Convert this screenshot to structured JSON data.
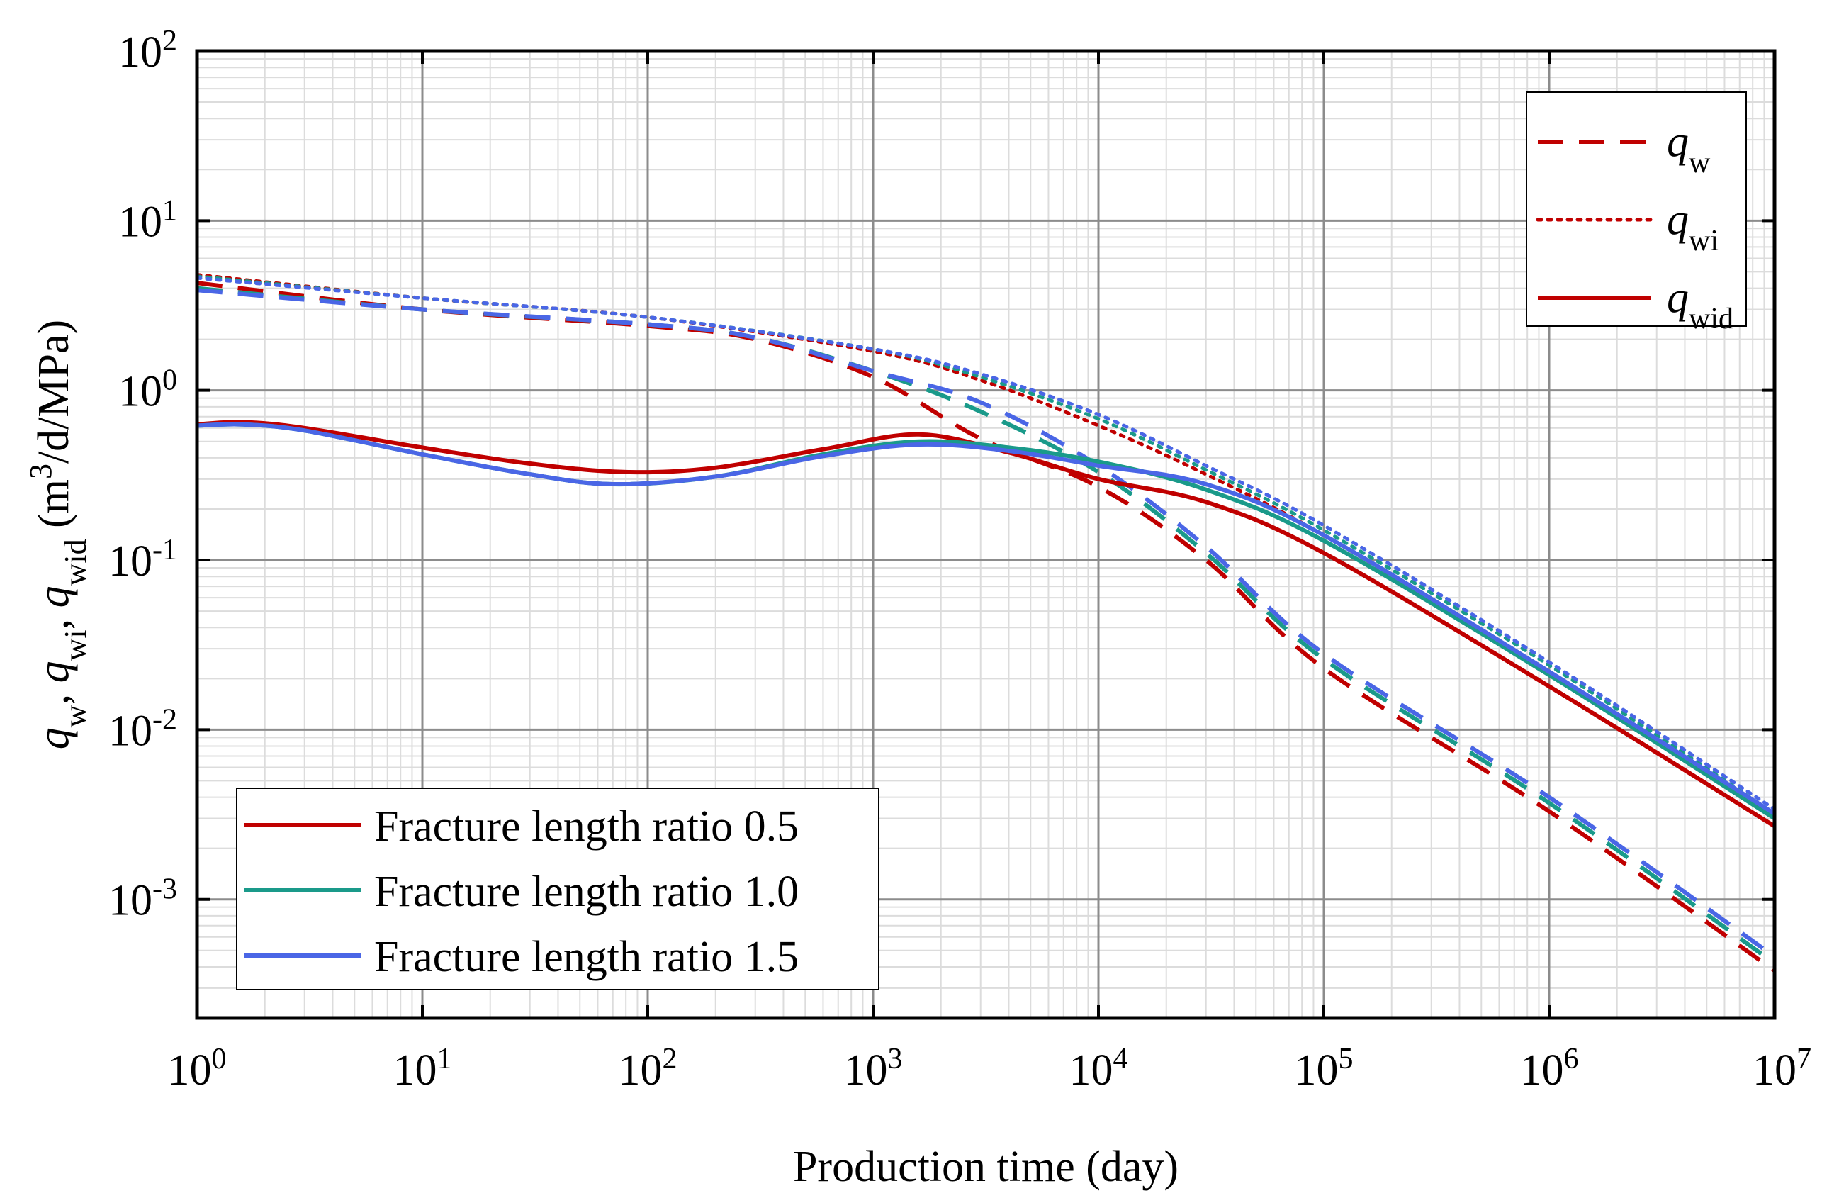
{
  "chart_data": {
    "type": "line",
    "title": "",
    "xlabel": "Production time (day)",
    "ylabel_parts": [
      {
        "text": "q",
        "style": "italic"
      },
      {
        "text": "w",
        "style": "sub"
      },
      {
        "text": ", ",
        "style": "normal"
      },
      {
        "text": "q",
        "style": "italic"
      },
      {
        "text": "wi",
        "style": "sub"
      },
      {
        "text": ", ",
        "style": "normal"
      },
      {
        "text": "q",
        "style": "italic"
      },
      {
        "text": "wid",
        "style": "sub"
      },
      {
        "text": " (m",
        "style": "normal"
      },
      {
        "text": "3",
        "style": "sup"
      },
      {
        "text": "/d/MPa)",
        "style": "normal"
      }
    ],
    "x_scale": "log",
    "y_scale": "log",
    "xlim": [
      1,
      10000000
    ],
    "ylim": [
      0.0002,
      100
    ],
    "x_ticks": [
      {
        "base": "10",
        "exp": "0",
        "value": 1
      },
      {
        "base": "10",
        "exp": "1",
        "value": 10
      },
      {
        "base": "10",
        "exp": "2",
        "value": 100
      },
      {
        "base": "10",
        "exp": "3",
        "value": 1000
      },
      {
        "base": "10",
        "exp": "4",
        "value": 10000
      },
      {
        "base": "10",
        "exp": "5",
        "value": 100000
      },
      {
        "base": "10",
        "exp": "6",
        "value": 1000000
      },
      {
        "base": "10",
        "exp": "7",
        "value": 10000000
      }
    ],
    "y_ticks": [
      {
        "base": "10",
        "exp": "-3",
        "value": 0.001
      },
      {
        "base": "10",
        "exp": "-2",
        "value": 0.01
      },
      {
        "base": "10",
        "exp": "-1",
        "value": 0.1
      },
      {
        "base": "10",
        "exp": "0",
        "value": 1
      },
      {
        "base": "10",
        "exp": "1",
        "value": 10
      },
      {
        "base": "10",
        "exp": "2",
        "value": 100
      }
    ],
    "grid": true,
    "colors": {
      "ratio_0_5": "#c00000",
      "ratio_1_0": "#1a9a8a",
      "ratio_1_5": "#4a66e6"
    },
    "legend_groups": {
      "placement": "bottom-left",
      "entries": [
        {
          "label": "Fracture length ratio 0.5",
          "color": "#c00000"
        },
        {
          "label": "Fracture length ratio 1.0",
          "color": "#1a9a8a"
        },
        {
          "label": "Fracture length ratio 1.5",
          "color": "#4a66e6"
        }
      ]
    },
    "legend_types": {
      "placement": "top-right",
      "entries": [
        {
          "symbol": "q",
          "sub": "w",
          "dash": "dashed",
          "color": "#c00000"
        },
        {
          "symbol": "q",
          "sub": "wi",
          "dash": "dotted",
          "color": "#c00000"
        },
        {
          "symbol": "q",
          "sub": "wid",
          "dash": "solid",
          "color": "#c00000"
        }
      ]
    },
    "series": [
      {
        "name": "q_w, ratio 0.5",
        "dash": "dashed",
        "color": "#c00000",
        "x": [
          1,
          10,
          100,
          300,
          1000,
          3000,
          10000,
          30000,
          100000,
          1000000,
          10000000
        ],
        "y": [
          4.3,
          3.0,
          2.4,
          2.0,
          1.2,
          0.52,
          0.27,
          0.1,
          0.023,
          0.0033,
          0.00038
        ]
      },
      {
        "name": "q_w, ratio 1.0",
        "dash": "dashed",
        "color": "#1a9a8a",
        "x": [
          1,
          10,
          100,
          300,
          1000,
          3000,
          10000,
          30000,
          100000,
          1000000,
          10000000
        ],
        "y": [
          4.0,
          3.0,
          2.45,
          2.05,
          1.3,
          0.75,
          0.33,
          0.11,
          0.026,
          0.0037,
          0.00042
        ]
      },
      {
        "name": "q_w, ratio 1.5",
        "dash": "dashed",
        "color": "#4a66e6",
        "x": [
          1,
          10,
          100,
          300,
          1000,
          3000,
          10000,
          30000,
          100000,
          1000000,
          10000000
        ],
        "y": [
          3.9,
          3.0,
          2.45,
          2.05,
          1.3,
          0.85,
          0.36,
          0.12,
          0.028,
          0.004,
          0.00046
        ]
      },
      {
        "name": "q_wi, ratio 0.5",
        "dash": "dotted",
        "color": "#c00000",
        "x": [
          1,
          10,
          100,
          1000,
          3000,
          10000,
          30000,
          100000,
          1000000,
          10000000
        ],
        "y": [
          4.8,
          3.5,
          2.7,
          1.7,
          1.15,
          0.62,
          0.32,
          0.14,
          0.022,
          0.003
        ]
      },
      {
        "name": "q_wi, ratio 1.0",
        "dash": "dotted",
        "color": "#1a9a8a",
        "x": [
          1,
          10,
          100,
          1000,
          3000,
          10000,
          30000,
          100000,
          1000000,
          10000000
        ],
        "y": [
          4.7,
          3.5,
          2.7,
          1.75,
          1.2,
          0.68,
          0.34,
          0.15,
          0.024,
          0.0032
        ]
      },
      {
        "name": "q_wi, ratio 1.5",
        "dash": "dotted",
        "color": "#4a66e6",
        "x": [
          1,
          10,
          100,
          1000,
          3000,
          10000,
          30000,
          100000,
          1000000,
          10000000
        ],
        "y": [
          4.6,
          3.5,
          2.7,
          1.75,
          1.25,
          0.72,
          0.36,
          0.16,
          0.025,
          0.0034
        ]
      },
      {
        "name": "q_wid, ratio 0.5",
        "dash": "solid",
        "color": "#c00000",
        "x": [
          1,
          1.6,
          3,
          10,
          30,
          80,
          200,
          600,
          1600,
          4000,
          10000,
          30000,
          100000,
          1000000,
          10000000
        ],
        "y": [
          0.63,
          0.65,
          0.6,
          0.46,
          0.37,
          0.33,
          0.35,
          0.45,
          0.55,
          0.43,
          0.3,
          0.22,
          0.11,
          0.018,
          0.0027
        ]
      },
      {
        "name": "q_wid, ratio 1.0",
        "dash": "solid",
        "color": "#1a9a8a",
        "x": [
          1,
          1.6,
          3,
          10,
          30,
          70,
          200,
          600,
          1600,
          4000,
          10000,
          30000,
          100000,
          1000000,
          10000000
        ],
        "y": [
          0.62,
          0.63,
          0.58,
          0.42,
          0.32,
          0.28,
          0.31,
          0.42,
          0.5,
          0.46,
          0.38,
          0.26,
          0.13,
          0.021,
          0.003
        ]
      },
      {
        "name": "q_wid, ratio 1.5",
        "dash": "solid",
        "color": "#4a66e6",
        "x": [
          1,
          1.6,
          3,
          10,
          30,
          70,
          200,
          600,
          1600,
          4000,
          10000,
          30000,
          100000,
          1000000,
          10000000
        ],
        "y": [
          0.62,
          0.63,
          0.58,
          0.42,
          0.32,
          0.28,
          0.31,
          0.41,
          0.48,
          0.44,
          0.36,
          0.28,
          0.14,
          0.022,
          0.0032
        ]
      }
    ]
  }
}
